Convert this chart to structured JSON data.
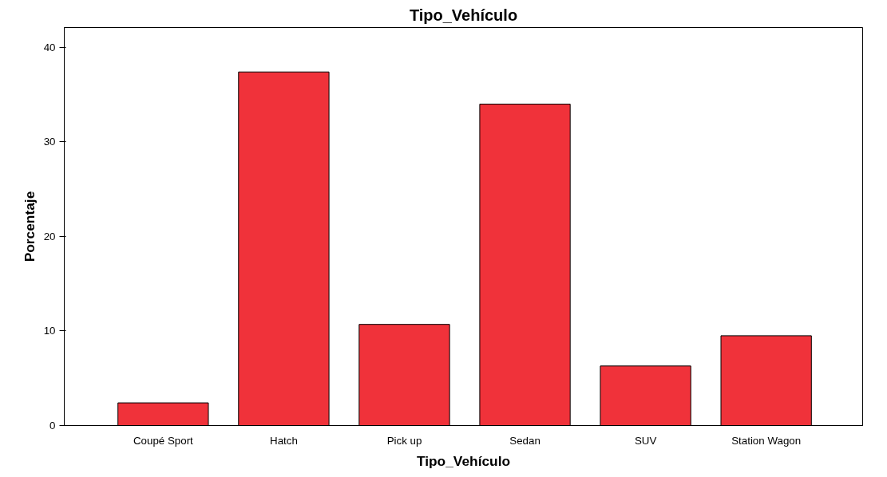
{
  "chart_data": {
    "type": "bar",
    "title": "Tipo_Vehículo",
    "xlabel": "Tipo_Vehículo",
    "ylabel": "Porcentaje",
    "categories": [
      "Coupé Sport",
      "Hatch",
      "Pick up",
      "Sedan",
      "SUV",
      "Station Wagon"
    ],
    "values": [
      2.4,
      37.4,
      10.7,
      34.0,
      6.3,
      9.5
    ],
    "color": "#f0323a",
    "ylim": [
      0,
      42.1
    ],
    "yticks": [
      0,
      10,
      20,
      30,
      40
    ],
    "grid": false
  }
}
